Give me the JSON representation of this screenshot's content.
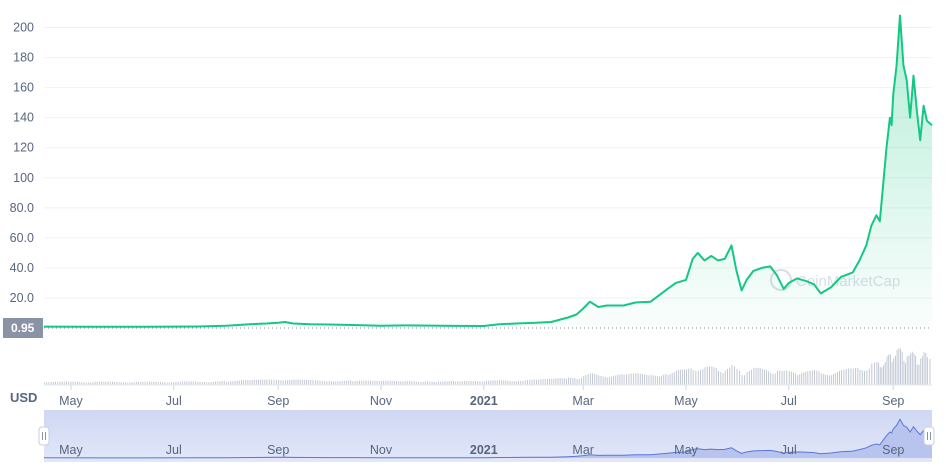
{
  "chart_data": {
    "type": "area",
    "currency_label": "USD",
    "current_price_label": "0.95",
    "watermark": "CoinMarketCap",
    "x_start": "2020-04-15",
    "x_end": "2021-09-24",
    "ylim": [
      0,
      215
    ],
    "y_ticks": [
      "20.0",
      "40.0",
      "60.0",
      "80.0",
      "100",
      "120",
      "140",
      "160",
      "180",
      "200"
    ],
    "x_ticks": [
      {
        "date": "2020-05-01",
        "label": "May",
        "bold": false
      },
      {
        "date": "2020-07-01",
        "label": "Jul",
        "bold": false
      },
      {
        "date": "2020-09-01",
        "label": "Sep",
        "bold": false
      },
      {
        "date": "2020-11-01",
        "label": "Nov",
        "bold": false
      },
      {
        "date": "2021-01-01",
        "label": "2021",
        "bold": true
      },
      {
        "date": "2021-03-01",
        "label": "Mar",
        "bold": false
      },
      {
        "date": "2021-05-01",
        "label": "May",
        "bold": false
      },
      {
        "date": "2021-07-01",
        "label": "Jul",
        "bold": false
      },
      {
        "date": "2021-09-01",
        "label": "Sep",
        "bold": false
      }
    ],
    "series": [
      {
        "color": "#16c784",
        "points": [
          [
            "2020-04-15",
            0.9
          ],
          [
            "2020-05-15",
            0.8
          ],
          [
            "2020-06-15",
            0.8
          ],
          [
            "2020-07-15",
            1.0
          ],
          [
            "2020-08-01",
            1.5
          ],
          [
            "2020-08-15",
            2.5
          ],
          [
            "2020-08-25",
            3.0
          ],
          [
            "2020-09-01",
            3.5
          ],
          [
            "2020-09-05",
            4.0
          ],
          [
            "2020-09-10",
            3.0
          ],
          [
            "2020-09-20",
            2.5
          ],
          [
            "2020-10-01",
            2.3
          ],
          [
            "2020-10-15",
            2.0
          ],
          [
            "2020-11-01",
            1.5
          ],
          [
            "2020-11-15",
            1.7
          ],
          [
            "2020-12-01",
            1.6
          ],
          [
            "2020-12-15",
            1.4
          ],
          [
            "2021-01-01",
            1.3
          ],
          [
            "2021-01-10",
            2.5
          ],
          [
            "2021-01-20",
            3.0
          ],
          [
            "2021-02-01",
            3.5
          ],
          [
            "2021-02-10",
            4.0
          ],
          [
            "2021-02-20",
            7.0
          ],
          [
            "2021-02-25",
            9.0
          ],
          [
            "2021-03-01",
            13.0
          ],
          [
            "2021-03-05",
            17.5
          ],
          [
            "2021-03-10",
            14.0
          ],
          [
            "2021-03-15",
            15.0
          ],
          [
            "2021-03-25",
            15.0
          ],
          [
            "2021-04-01",
            17.0
          ],
          [
            "2021-04-10",
            17.5
          ],
          [
            "2021-04-20",
            26.0
          ],
          [
            "2021-04-25",
            30.0
          ],
          [
            "2021-05-01",
            32.0
          ],
          [
            "2021-05-05",
            46.0
          ],
          [
            "2021-05-08",
            50.0
          ],
          [
            "2021-05-12",
            45.0
          ],
          [
            "2021-05-16",
            48.0
          ],
          [
            "2021-05-20",
            45.0
          ],
          [
            "2021-05-24",
            46.0
          ],
          [
            "2021-05-28",
            55.0
          ],
          [
            "2021-05-31",
            38.0
          ],
          [
            "2021-06-03",
            25.0
          ],
          [
            "2021-06-06",
            32.0
          ],
          [
            "2021-06-10",
            38.0
          ],
          [
            "2021-06-15",
            40.0
          ],
          [
            "2021-06-20",
            41.0
          ],
          [
            "2021-06-24",
            35.0
          ],
          [
            "2021-06-28",
            26.0
          ],
          [
            "2021-07-01",
            30.0
          ],
          [
            "2021-07-06",
            33.0
          ],
          [
            "2021-07-12",
            31.0
          ],
          [
            "2021-07-16",
            29.0
          ],
          [
            "2021-07-20",
            23.0
          ],
          [
            "2021-07-26",
            27.0
          ],
          [
            "2021-08-01",
            34.0
          ],
          [
            "2021-08-08",
            37.0
          ],
          [
            "2021-08-12",
            45.0
          ],
          [
            "2021-08-16",
            55.0
          ],
          [
            "2021-08-19",
            68.0
          ],
          [
            "2021-08-22",
            75.0
          ],
          [
            "2021-08-24",
            71.0
          ],
          [
            "2021-08-26",
            95.0
          ],
          [
            "2021-08-28",
            120.0
          ],
          [
            "2021-08-30",
            140.0
          ],
          [
            "2021-08-31",
            135.0
          ],
          [
            "2021-09-01",
            155.0
          ],
          [
            "2021-09-03",
            175.0
          ],
          [
            "2021-09-05",
            208.0
          ],
          [
            "2021-09-07",
            175.0
          ],
          [
            "2021-09-09",
            165.0
          ],
          [
            "2021-09-11",
            140.0
          ],
          [
            "2021-09-13",
            168.0
          ],
          [
            "2021-09-15",
            145.0
          ],
          [
            "2021-09-17",
            125.0
          ],
          [
            "2021-09-19",
            148.0
          ],
          [
            "2021-09-21",
            138.0
          ],
          [
            "2021-09-24",
            135.0
          ]
        ]
      }
    ],
    "grid": true,
    "legend": "none"
  }
}
